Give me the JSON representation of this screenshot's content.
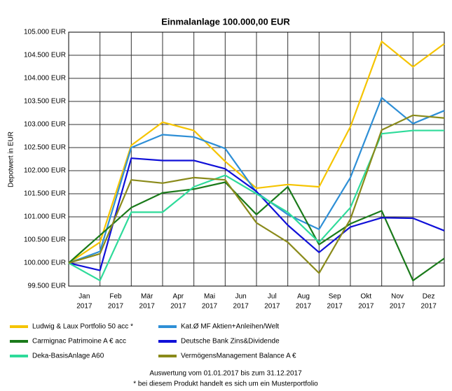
{
  "chart_data": {
    "type": "line",
    "title": "Einmalanlage 100.000,00 EUR",
    "y_label": "Depotwert in EUR",
    "x_labels": [
      {
        "month": "Jan",
        "year": "2017"
      },
      {
        "month": "Feb",
        "year": "2017"
      },
      {
        "month": "Mär",
        "year": "2017"
      },
      {
        "month": "Apr",
        "year": "2017"
      },
      {
        "month": "Mai",
        "year": "2017"
      },
      {
        "month": "Jun",
        "year": "2017"
      },
      {
        "month": "Jul",
        "year": "2017"
      },
      {
        "month": "Aug",
        "year": "2017"
      },
      {
        "month": "Sep",
        "year": "2017"
      },
      {
        "month": "Okt",
        "year": "2017"
      },
      {
        "month": "Nov",
        "year": "2017"
      },
      {
        "month": "Dez",
        "year": "2017"
      }
    ],
    "x": [
      0,
      1,
      2,
      3,
      4,
      5,
      6,
      7,
      8,
      9,
      10,
      11,
      12
    ],
    "xlim": [
      0,
      12
    ],
    "ylim": [
      99500,
      105000
    ],
    "yticks": [
      {
        "value": 99500,
        "label": "99.500 EUR"
      },
      {
        "value": 100000,
        "label": "100.000 EUR"
      },
      {
        "value": 100500,
        "label": "100.500 EUR"
      },
      {
        "value": 101000,
        "label": "101.000 EUR"
      },
      {
        "value": 101500,
        "label": "101.500 EUR"
      },
      {
        "value": 102000,
        "label": "102.000 EUR"
      },
      {
        "value": 102500,
        "label": "102.500 EUR"
      },
      {
        "value": 103000,
        "label": "103.000 EUR"
      },
      {
        "value": 103500,
        "label": "103.500 EUR"
      },
      {
        "value": 104000,
        "label": "104.000 EUR"
      },
      {
        "value": 104500,
        "label": "104.500 EUR"
      },
      {
        "value": 105000,
        "label": "105.000 EUR"
      }
    ],
    "grid": true,
    "series": [
      {
        "name": "Ludwig & Laux Portfolio 50 acc  *",
        "color": "#f5c400",
        "values": [
          100000,
          100450,
          102550,
          103050,
          102870,
          102200,
          101620,
          101700,
          101650,
          102950,
          104800,
          104250,
          104750
        ]
      },
      {
        "name": "Kat.Ø MF Aktien+Anleihen/Welt",
        "color": "#2e8fd6",
        "values": [
          100000,
          100250,
          102500,
          102780,
          102730,
          102480,
          101530,
          101050,
          100730,
          101850,
          103580,
          103020,
          103300
        ]
      },
      {
        "name": "Carmignac Patrimoine A € acc",
        "color": "#1a7a1a",
        "values": [
          100000,
          100600,
          101200,
          101520,
          101600,
          101750,
          101050,
          101650,
          100400,
          100850,
          101130,
          99620,
          100100
        ]
      },
      {
        "name": "Deutsche Bank Zins&Dividende",
        "color": "#1010d8",
        "values": [
          100000,
          99840,
          102270,
          102220,
          102220,
          102040,
          101550,
          100820,
          100230,
          100780,
          100980,
          100970,
          100700
        ]
      },
      {
        "name": "Deka-BasisAnlage A60",
        "color": "#2edb9a",
        "values": [
          100000,
          99620,
          101100,
          101100,
          101650,
          101900,
          101500,
          101100,
          100450,
          101200,
          102800,
          102870,
          102870
        ]
      },
      {
        "name": "VermögensManagement Balance A €",
        "color": "#8a8a1a",
        "values": [
          100000,
          100200,
          101800,
          101730,
          101850,
          101800,
          100870,
          100450,
          99780,
          100950,
          102880,
          103200,
          103140
        ]
      }
    ],
    "footer": [
      "Auswertung vom 01.01.2017 bis zum 31.12.2017",
      "* bei diesem Produkt handelt es sich um ein Musterportfolio"
    ]
  }
}
